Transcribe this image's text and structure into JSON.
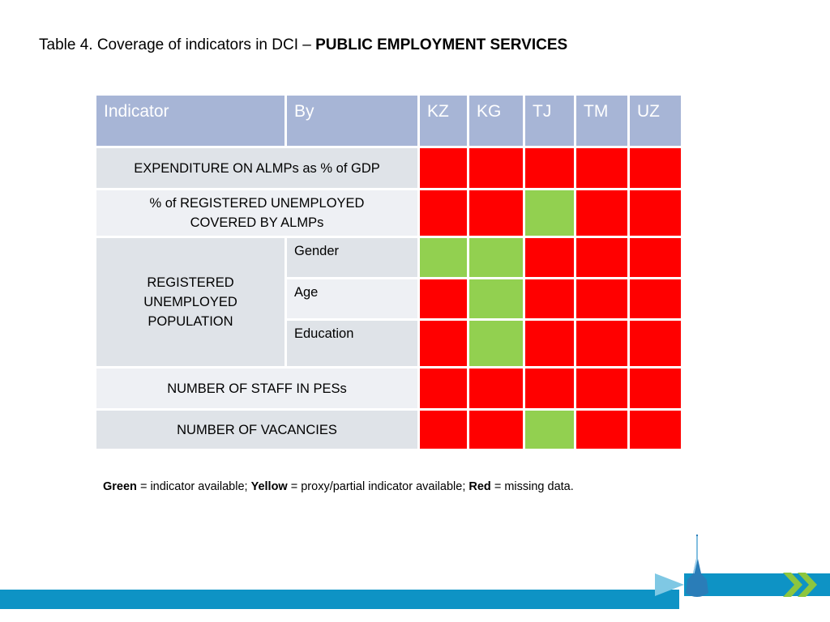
{
  "title": {
    "prefix": "Table 4. Coverage of indicators in DCI – ",
    "bold": "PUBLIC EMPLOYMENT SERVICES"
  },
  "table": {
    "headers": [
      "Indicator",
      "By",
      "KZ",
      "KG",
      "TJ",
      "TM",
      "UZ"
    ],
    "rows": {
      "expenditure": {
        "label": "EXPENDITURE ON ALMPs as % of GDP",
        "values": [
          "red",
          "red",
          "red",
          "red",
          "red"
        ]
      },
      "covered": {
        "label": "% of REGISTERED UNEMPLOYED COVERED BY ALMPs",
        "values": [
          "red",
          "red",
          "green",
          "red",
          "red"
        ]
      },
      "registered": {
        "label": "REGISTERED UNEMPLOYED POPULATION",
        "by": {
          "gender": {
            "label": "Gender",
            "values": [
              "green",
              "green",
              "red",
              "red",
              "red"
            ]
          },
          "age": {
            "label": "Age",
            "values": [
              "red",
              "green",
              "red",
              "red",
              "red"
            ]
          },
          "education": {
            "label": "Education",
            "values": [
              "red",
              "green",
              "red",
              "red",
              "red"
            ]
          }
        }
      },
      "staff": {
        "label": "NUMBER OF STAFF IN PESs",
        "values": [
          "red",
          "red",
          "red",
          "red",
          "red"
        ]
      },
      "vacancies": {
        "label": "NUMBER OF VACANCIES",
        "values": [
          "red",
          "red",
          "green",
          "red",
          "red"
        ]
      }
    }
  },
  "legend": {
    "green_word": "Green",
    "green_text": " = indicator available; ",
    "yellow_word": "Yellow",
    "yellow_text": " = proxy/partial indicator available; ",
    "red_word": "Red",
    "red_text": " = missing data."
  },
  "colors": {
    "header": "#a7b5d6",
    "label_cell": "#dfe3e8",
    "green": "#92d050",
    "red": "#ff0000",
    "yellow": "#ffff00",
    "footer": "#0e93c5"
  },
  "icons": [
    "tower-logo-icon",
    "double-chevron-icon"
  ]
}
